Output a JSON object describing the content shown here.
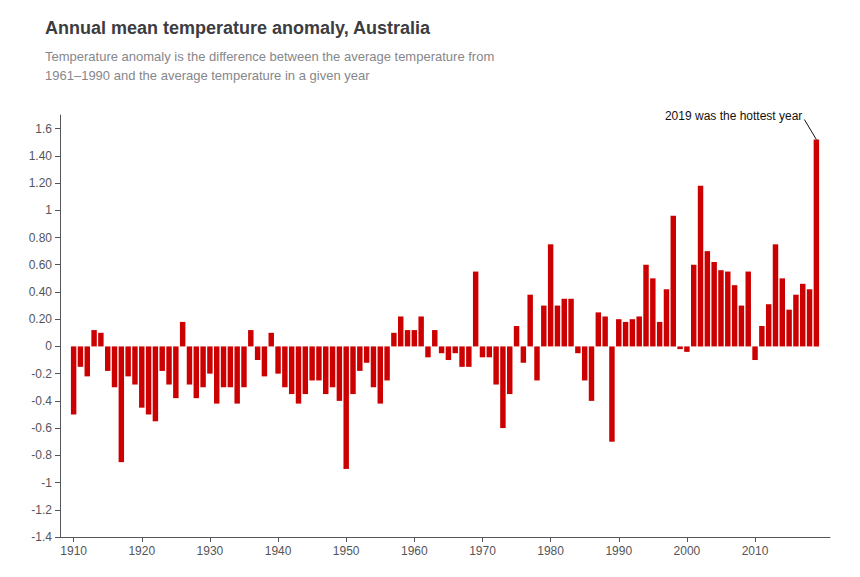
{
  "chart_data": {
    "type": "bar",
    "title": "Annual mean temperature anomaly, Australia",
    "subtitle": "Temperature anomaly is the difference between the average temperature from\n1961–1990 and the average temperature in a given year",
    "annotations": [
      {
        "text": "2019 was the hottest year",
        "x": 2019,
        "y": 1.52
      }
    ],
    "color": "#cc0000",
    "grid": false,
    "xlim": [
      1908,
      2021
    ],
    "xticks": [
      1910,
      1920,
      1930,
      1940,
      1950,
      1960,
      1970,
      1980,
      1990,
      2000,
      2010
    ],
    "ylim": [
      -1.4,
      1.7
    ],
    "yticks": [
      -1.4,
      -1.2,
      -1,
      -0.8,
      -0.6,
      -0.4,
      -0.2,
      0,
      {
        "value": 0.2,
        "label": "0.20"
      },
      {
        "value": 0.4,
        "label": "0.40"
      },
      {
        "value": 0.6,
        "label": "0.60"
      },
      {
        "value": 0.8,
        "label": "0.80"
      },
      1,
      {
        "value": 1.2,
        "label": "1.20"
      },
      {
        "value": 1.4,
        "label": "1.40"
      },
      1.6
    ],
    "x": [
      1910,
      1911,
      1912,
      1913,
      1914,
      1915,
      1916,
      1917,
      1918,
      1919,
      1920,
      1921,
      1922,
      1923,
      1924,
      1925,
      1926,
      1927,
      1928,
      1929,
      1930,
      1931,
      1932,
      1933,
      1934,
      1935,
      1936,
      1937,
      1938,
      1939,
      1940,
      1941,
      1942,
      1943,
      1944,
      1945,
      1946,
      1947,
      1948,
      1949,
      1950,
      1951,
      1952,
      1953,
      1954,
      1955,
      1956,
      1957,
      1958,
      1959,
      1960,
      1961,
      1962,
      1963,
      1964,
      1965,
      1966,
      1967,
      1968,
      1969,
      1970,
      1971,
      1972,
      1973,
      1974,
      1975,
      1976,
      1977,
      1978,
      1979,
      1980,
      1981,
      1982,
      1983,
      1984,
      1985,
      1986,
      1987,
      1988,
      1989,
      1990,
      1991,
      1992,
      1993,
      1994,
      1995,
      1996,
      1997,
      1998,
      1999,
      2000,
      2001,
      2002,
      2003,
      2004,
      2005,
      2006,
      2007,
      2008,
      2009,
      2010,
      2011,
      2012,
      2013,
      2014,
      2015,
      2016,
      2017,
      2018,
      2019
    ],
    "values": [
      -0.5,
      -0.15,
      -0.22,
      0.12,
      0.1,
      -0.18,
      -0.3,
      -0.85,
      -0.22,
      -0.28,
      -0.45,
      -0.5,
      -0.55,
      -0.18,
      -0.28,
      -0.38,
      0.18,
      -0.28,
      -0.38,
      -0.3,
      -0.2,
      -0.42,
      -0.3,
      -0.3,
      -0.42,
      -0.3,
      0.12,
      -0.1,
      -0.22,
      0.1,
      -0.2,
      -0.3,
      -0.35,
      -0.42,
      -0.35,
      -0.25,
      -0.25,
      -0.35,
      -0.3,
      -0.4,
      -0.9,
      -0.35,
      -0.18,
      -0.12,
      -0.3,
      -0.42,
      -0.25,
      0.1,
      0.22,
      0.12,
      0.12,
      0.22,
      -0.08,
      0.12,
      -0.05,
      -0.1,
      -0.05,
      -0.15,
      -0.15,
      0.55,
      -0.08,
      -0.08,
      -0.28,
      -0.6,
      -0.35,
      0.15,
      -0.12,
      0.38,
      -0.25,
      0.3,
      0.75,
      0.3,
      0.35,
      0.35,
      -0.05,
      -0.25,
      -0.4,
      0.25,
      0.22,
      -0.7,
      0.2,
      0.18,
      0.2,
      0.22,
      0.6,
      0.5,
      0.18,
      0.42,
      0.96,
      -0.02,
      -0.04,
      0.6,
      1.18,
      0.7,
      0.62,
      0.56,
      0.55,
      0.45,
      0.3,
      0.55,
      -0.1,
      0.15,
      0.31,
      0.75,
      0.5,
      0.27,
      0.38,
      0.46,
      0.42,
      1.52
    ]
  }
}
